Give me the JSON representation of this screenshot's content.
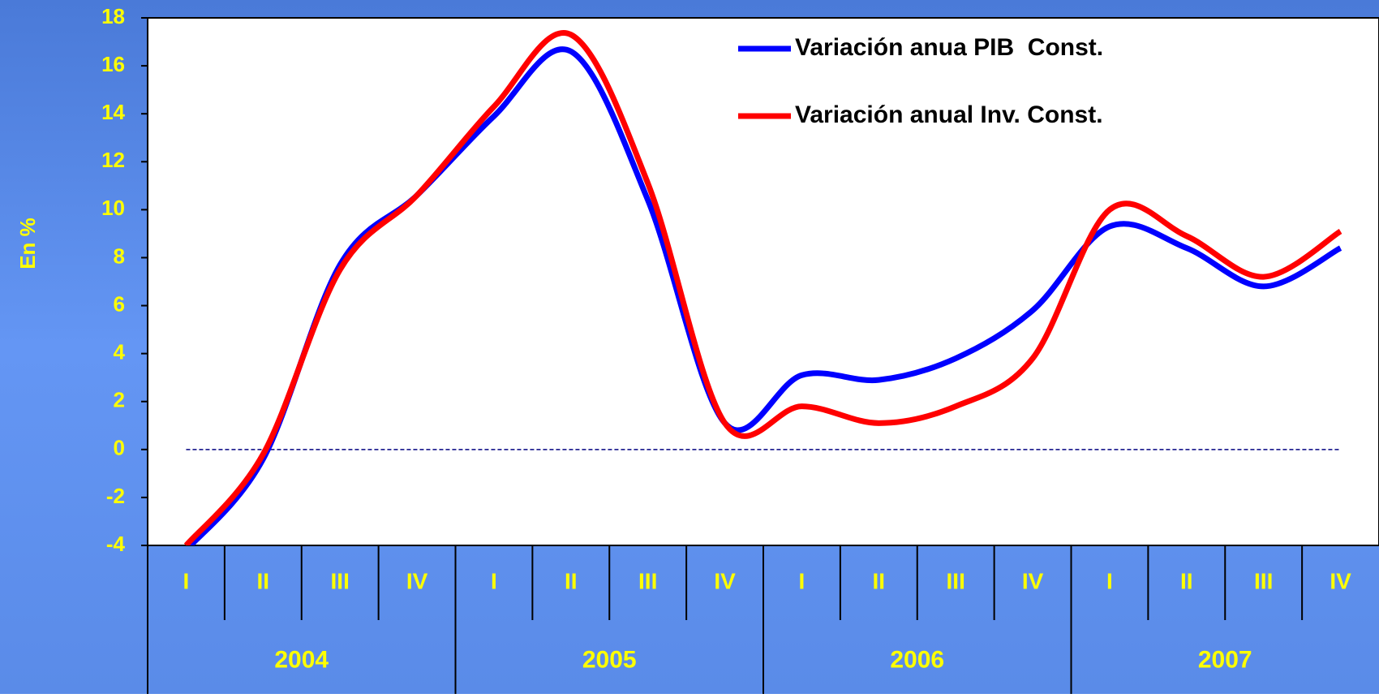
{
  "chart_data": {
    "type": "line",
    "y_label": "En %",
    "categories": [
      "I",
      "II",
      "III",
      "IV",
      "I",
      "II",
      "III",
      "IV",
      "I",
      "II",
      "III",
      "IV",
      "I",
      "II",
      "III",
      "IV"
    ],
    "years": [
      "2004",
      "2005",
      "2006",
      "2007"
    ],
    "series": [
      {
        "name": "Variación anua PIB  Const.",
        "color": "#0000ff",
        "values": [
          -4.2,
          -0.4,
          7.7,
          10.6,
          13.9,
          16.6,
          10.4,
          1.1,
          3.1,
          2.9,
          3.8,
          5.8,
          9.3,
          8.4,
          6.8,
          8.4
        ]
      },
      {
        "name": "Variación anual Inv. Const.",
        "color": "#ff0000",
        "values": [
          -4.0,
          -0.2,
          7.5,
          10.6,
          14.3,
          17.3,
          11.1,
          1.1,
          1.8,
          1.1,
          1.8,
          3.8,
          10.0,
          8.9,
          7.2,
          9.1
        ]
      }
    ],
    "ylim": [
      -4,
      18
    ],
    "yticks": [
      -4,
      -2,
      0,
      2,
      4,
      6,
      8,
      10,
      12,
      14,
      16,
      18
    ],
    "zero_line": true
  }
}
